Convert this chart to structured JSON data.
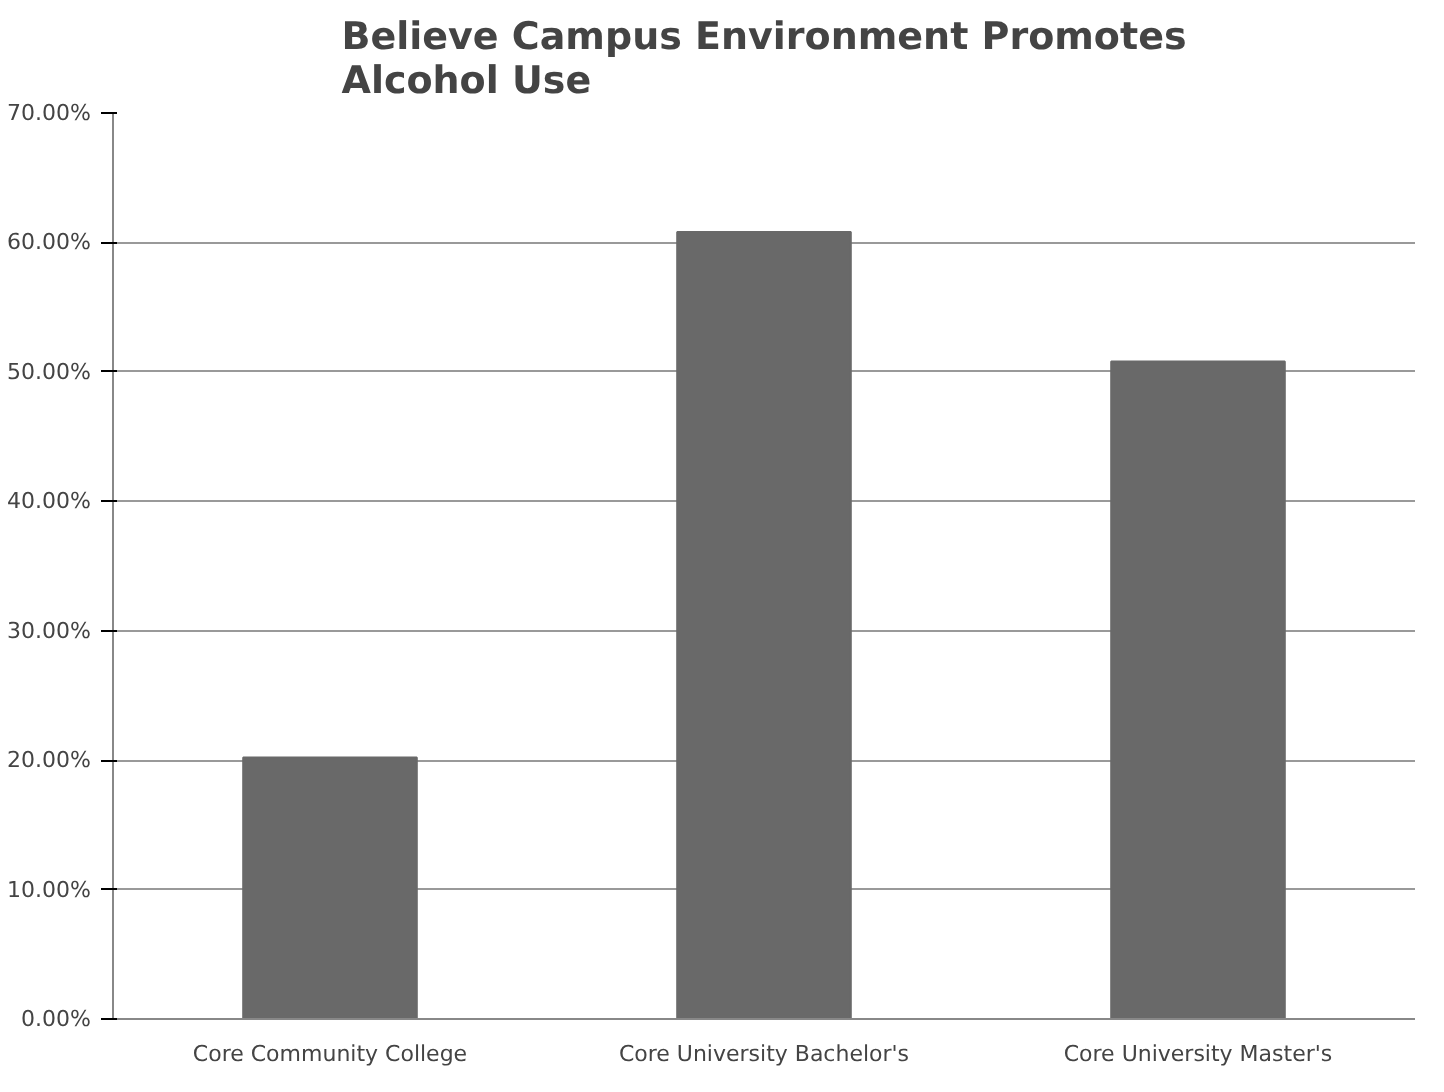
{
  "chart_data": {
    "type": "bar",
    "title": "Believe Campus Environment Promotes\nAlcohol Use",
    "categories": [
      "Core Community College",
      "Core University Bachelor's",
      "Core University Master's"
    ],
    "values": [
      20.2,
      60.8,
      50.8
    ],
    "color": "#696969",
    "ylim": [
      0,
      70
    ],
    "yticks": [
      {
        "value": 0,
        "label": "0.00%"
      },
      {
        "value": 10,
        "label": "10.00%"
      },
      {
        "value": 20,
        "label": "20.00%"
      },
      {
        "value": 30,
        "label": "30.00%"
      },
      {
        "value": 40,
        "label": "40.00%"
      },
      {
        "value": 50,
        "label": "50.00%"
      },
      {
        "value": 60,
        "label": "60.00%"
      },
      {
        "value": 70,
        "label": "70.00%"
      }
    ],
    "grid": "y"
  }
}
